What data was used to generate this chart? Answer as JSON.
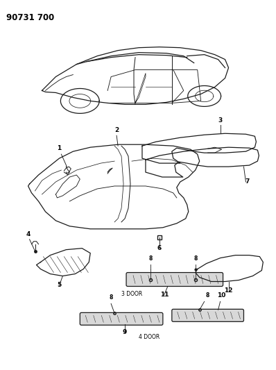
{
  "title": "90731 700",
  "background_color": "#ffffff",
  "line_color": "#1a1a1a",
  "figsize": [
    3.98,
    5.33
  ],
  "dpi": 100,
  "car": {
    "body_color": "#1a1a1a",
    "lw": 0.9
  },
  "parts": {
    "carpet_main_color": "#1a1a1a",
    "scuff_fill": "#c8c8c8"
  }
}
